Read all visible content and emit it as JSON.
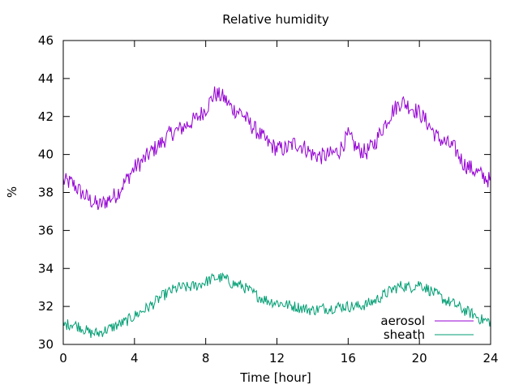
{
  "chart_data": {
    "type": "line",
    "title": "Relative humidity",
    "xlabel": "Time [hour]",
    "ylabel": "%",
    "xlim": [
      0,
      24
    ],
    "ylim": [
      30,
      46
    ],
    "xticks": [
      0,
      4,
      8,
      12,
      16,
      20,
      24
    ],
    "yticks": [
      30,
      32,
      34,
      36,
      38,
      40,
      42,
      44,
      46
    ],
    "grid": false,
    "legend_position": "bottom-right",
    "series": [
      {
        "name": "aerosol",
        "color": "#9400d3",
        "x": [
          0,
          0.5,
          1,
          1.5,
          2,
          2.5,
          3,
          3.5,
          4,
          4.5,
          5,
          5.5,
          6,
          6.5,
          7,
          7.5,
          8,
          8.5,
          9,
          9.5,
          10,
          10.5,
          11,
          11.5,
          12,
          12.5,
          13,
          13.5,
          14,
          14.5,
          15,
          15.5,
          16,
          16.5,
          17,
          17.5,
          18,
          18.5,
          19,
          19.5,
          20,
          20.5,
          21,
          21.5,
          22,
          22.5,
          23,
          23.5,
          24
        ],
        "y": [
          38.6,
          38.5,
          38.0,
          37.6,
          37.3,
          37.6,
          37.9,
          38.6,
          39.3,
          39.7,
          40.2,
          40.6,
          41.1,
          41.3,
          41.6,
          41.9,
          42.4,
          43.2,
          43.0,
          42.4,
          42.2,
          41.6,
          41.1,
          40.6,
          40.3,
          40.3,
          40.6,
          40.4,
          40.0,
          39.9,
          40.0,
          40.2,
          41.0,
          40.3,
          40.1,
          40.6,
          41.5,
          42.3,
          42.8,
          42.5,
          42.2,
          41.6,
          40.9,
          40.6,
          40.3,
          39.5,
          39.2,
          38.9,
          38.6
        ]
      },
      {
        "name": "sheath",
        "color": "#009e73",
        "x": [
          0,
          0.5,
          1,
          1.5,
          2,
          2.5,
          3,
          3.5,
          4,
          4.5,
          5,
          5.5,
          6,
          6.5,
          7,
          7.5,
          8,
          8.5,
          9,
          9.5,
          10,
          10.5,
          11,
          11.5,
          12,
          12.5,
          13,
          13.5,
          14,
          14.5,
          15,
          15.5,
          16,
          16.5,
          17,
          17.5,
          18,
          18.5,
          19,
          19.5,
          20,
          20.5,
          21,
          21.5,
          22,
          22.5,
          23,
          23.5,
          24
        ],
        "y": [
          31.0,
          31.1,
          30.9,
          30.6,
          30.6,
          30.8,
          31.0,
          31.2,
          31.5,
          31.8,
          32.1,
          32.5,
          32.8,
          33.0,
          33.0,
          33.1,
          33.3,
          33.5,
          33.5,
          33.2,
          33.1,
          32.8,
          32.5,
          32.3,
          32.2,
          32.1,
          32.0,
          31.9,
          31.8,
          31.9,
          31.9,
          32.0,
          32.0,
          32.0,
          32.1,
          32.3,
          32.6,
          32.9,
          33.1,
          33.0,
          33.2,
          32.9,
          32.6,
          32.3,
          32.1,
          31.8,
          31.6,
          31.3,
          31.2
        ]
      }
    ]
  }
}
